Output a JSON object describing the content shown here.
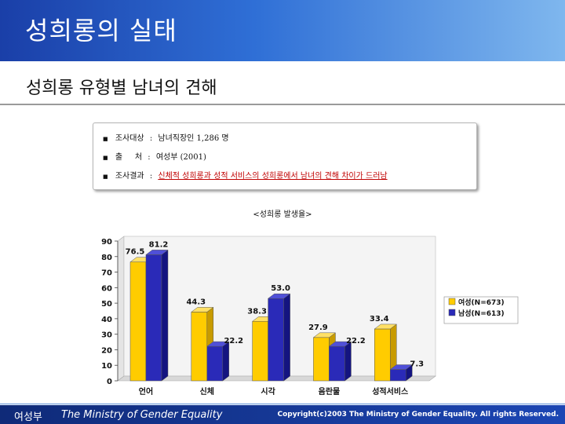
{
  "header": {
    "title": "성희롱의 실태"
  },
  "subtitle": "성희롱 유형별 남녀의 견해",
  "info": {
    "rows": [
      {
        "label": "조사대상",
        "value": "남녀직장인 1,286 명"
      },
      {
        "label": "출     처",
        "value": "여성부 (2001)"
      },
      {
        "label": "조사결과",
        "value": "신체적 성희롱과 성적 서비스의 성희롱에서 남녀의 견해 차이가 드러남"
      }
    ]
  },
  "chart_data": {
    "type": "bar",
    "title": "<성희롱 발생율>",
    "categories": [
      "언어",
      "신체",
      "시각",
      "음란물",
      "성적서비스"
    ],
    "series": [
      {
        "name": "여성(N=673)",
        "values": [
          76.5,
          44.3,
          38.3,
          27.9,
          33.4
        ],
        "color": "#ffcc00"
      },
      {
        "name": "남성(N=613)",
        "values": [
          81.2,
          22.2,
          53.0,
          22.2,
          7.3
        ],
        "color": "#2a2ab8"
      }
    ],
    "ylim": [
      0,
      90
    ],
    "yticks": [
      0,
      10,
      20,
      30,
      40,
      50,
      60,
      70,
      80,
      90
    ],
    "value_labels": [
      [
        "76.5",
        "44.3",
        "38.3",
        "27.9",
        "33.4"
      ],
      [
        "81.2",
        "22.2",
        "53.0",
        "22.2",
        "7.3"
      ]
    ],
    "legend": "right",
    "grid": false
  },
  "footer": {
    "org": "여성부",
    "english": "The Ministry of Gender Equality",
    "copyright": "Copyright(c)2003 The Ministry of Gender Equality. All rights Reserved."
  }
}
